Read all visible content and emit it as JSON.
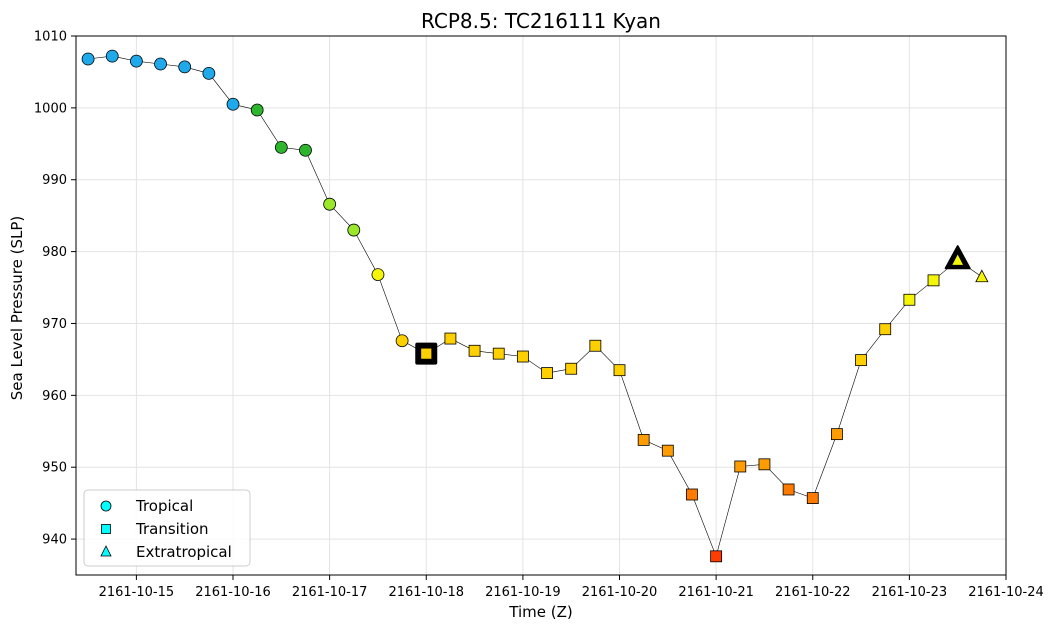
{
  "chart_data": {
    "type": "scatter",
    "title": "RCP8.5: TC216111 Kyan",
    "xlabel": "Time (Z)",
    "ylabel": "Sea Level Pressure (SLP)",
    "xlim": [
      "2161-10-14T09:00",
      "2161-10-24T00:00"
    ],
    "ylim": [
      935,
      1010
    ],
    "x_ticks": [
      "2161-10-15",
      "2161-10-16",
      "2161-10-17",
      "2161-10-18",
      "2161-10-19",
      "2161-10-20",
      "2161-10-21",
      "2161-10-22",
      "2161-10-23",
      "2161-10-24"
    ],
    "y_ticks": [
      940,
      950,
      960,
      970,
      980,
      990,
      1000,
      1010
    ],
    "grid": true,
    "legend_position": "bottom-left",
    "legend": [
      {
        "label": "Tropical",
        "marker": "circle"
      },
      {
        "label": "Transition",
        "marker": "square"
      },
      {
        "label": "Extratropical",
        "marker": "triangle"
      }
    ],
    "points": [
      {
        "time": "2161-10-14T12:00",
        "slp": 1006.8,
        "phase": "tropical",
        "color": "#1eaaea"
      },
      {
        "time": "2161-10-14T18:00",
        "slp": 1007.2,
        "phase": "tropical",
        "color": "#1eaaea"
      },
      {
        "time": "2161-10-15T00:00",
        "slp": 1006.5,
        "phase": "tropical",
        "color": "#1eaaea"
      },
      {
        "time": "2161-10-15T06:00",
        "slp": 1006.1,
        "phase": "tropical",
        "color": "#1eaaea"
      },
      {
        "time": "2161-10-15T12:00",
        "slp": 1005.7,
        "phase": "tropical",
        "color": "#1eaaea"
      },
      {
        "time": "2161-10-15T18:00",
        "slp": 1004.8,
        "phase": "tropical",
        "color": "#1eaaea"
      },
      {
        "time": "2161-10-16T00:00",
        "slp": 1000.5,
        "phase": "tropical",
        "color": "#1eaaea"
      },
      {
        "time": "2161-10-16T06:00",
        "slp": 999.7,
        "phase": "tropical",
        "color": "#2db52d"
      },
      {
        "time": "2161-10-16T12:00",
        "slp": 994.5,
        "phase": "tropical",
        "color": "#2db52d"
      },
      {
        "time": "2161-10-16T18:00",
        "slp": 994.1,
        "phase": "tropical",
        "color": "#2db52d"
      },
      {
        "time": "2161-10-17T00:00",
        "slp": 986.6,
        "phase": "tropical",
        "color": "#9be82a"
      },
      {
        "time": "2161-10-17T06:00",
        "slp": 983.0,
        "phase": "tropical",
        "color": "#9be82a"
      },
      {
        "time": "2161-10-17T12:00",
        "slp": 976.8,
        "phase": "tropical",
        "color": "#f5f50a"
      },
      {
        "time": "2161-10-17T18:00",
        "slp": 967.6,
        "phase": "tropical",
        "color": "#ffd000"
      },
      {
        "time": "2161-10-18T00:00",
        "slp": 965.8,
        "phase": "transition",
        "color": "#ffd000",
        "highlight": true
      },
      {
        "time": "2161-10-18T06:00",
        "slp": 967.9,
        "phase": "transition",
        "color": "#ffd000"
      },
      {
        "time": "2161-10-18T12:00",
        "slp": 966.2,
        "phase": "transition",
        "color": "#ffd000"
      },
      {
        "time": "2161-10-18T18:00",
        "slp": 965.8,
        "phase": "transition",
        "color": "#ffd000"
      },
      {
        "time": "2161-10-19T00:00",
        "slp": 965.4,
        "phase": "transition",
        "color": "#ffd000"
      },
      {
        "time": "2161-10-19T06:00",
        "slp": 963.1,
        "phase": "transition",
        "color": "#ffd000"
      },
      {
        "time": "2161-10-19T12:00",
        "slp": 963.7,
        "phase": "transition",
        "color": "#ffd000"
      },
      {
        "time": "2161-10-19T18:00",
        "slp": 966.9,
        "phase": "transition",
        "color": "#ffd000"
      },
      {
        "time": "2161-10-20T00:00",
        "slp": 963.5,
        "phase": "transition",
        "color": "#ffd000"
      },
      {
        "time": "2161-10-20T06:00",
        "slp": 953.8,
        "phase": "transition",
        "color": "#ff9d00"
      },
      {
        "time": "2161-10-20T12:00",
        "slp": 952.3,
        "phase": "transition",
        "color": "#ff9d00"
      },
      {
        "time": "2161-10-20T18:00",
        "slp": 946.2,
        "phase": "transition",
        "color": "#ff7b00"
      },
      {
        "time": "2161-10-21T00:00",
        "slp": 937.6,
        "phase": "transition",
        "color": "#ff3d00"
      },
      {
        "time": "2161-10-21T06:00",
        "slp": 950.1,
        "phase": "transition",
        "color": "#ff9d00"
      },
      {
        "time": "2161-10-21T12:00",
        "slp": 950.4,
        "phase": "transition",
        "color": "#ff9d00"
      },
      {
        "time": "2161-10-21T18:00",
        "slp": 946.9,
        "phase": "transition",
        "color": "#ff7b00"
      },
      {
        "time": "2161-10-22T00:00",
        "slp": 945.7,
        "phase": "transition",
        "color": "#ff7b00"
      },
      {
        "time": "2161-10-22T06:00",
        "slp": 954.6,
        "phase": "transition",
        "color": "#ff9d00"
      },
      {
        "time": "2161-10-22T12:00",
        "slp": 964.9,
        "phase": "transition",
        "color": "#ffd000"
      },
      {
        "time": "2161-10-22T18:00",
        "slp": 969.2,
        "phase": "transition",
        "color": "#ffd000"
      },
      {
        "time": "2161-10-23T00:00",
        "slp": 973.3,
        "phase": "transition",
        "color": "#f5f50a"
      },
      {
        "time": "2161-10-23T06:00",
        "slp": 976.0,
        "phase": "transition",
        "color": "#f5f50a"
      },
      {
        "time": "2161-10-23T12:00",
        "slp": 978.8,
        "phase": "extratropical",
        "color": "#f5f50a",
        "highlight": true
      },
      {
        "time": "2161-10-23T18:00",
        "slp": 976.5,
        "phase": "extratropical",
        "color": "#f5f50a"
      }
    ]
  }
}
